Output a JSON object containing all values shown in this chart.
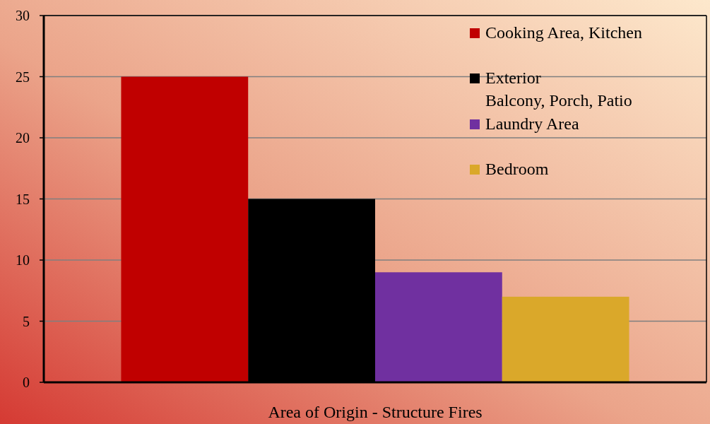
{
  "chart_data": {
    "type": "bar",
    "xlabel": "Area of Origin - Structure Fires",
    "categories": [
      null
    ],
    "series": [
      {
        "name": "Cooking Area, Kitchen",
        "color": "#c00000",
        "values": [
          25
        ]
      },
      {
        "name": "Exterior\nBalcony, Porch, Patio",
        "color": "#000000",
        "values": [
          15
        ]
      },
      {
        "name": "Laundry Area",
        "color": "#7030a0",
        "values": [
          9
        ]
      },
      {
        "name": "Bedroom",
        "color": "#daa82a",
        "values": [
          7
        ]
      }
    ],
    "ylim": [
      0,
      30
    ],
    "yticks": [
      0,
      5,
      10,
      15,
      20,
      25,
      30
    ],
    "grid": "y",
    "legend": "top right"
  }
}
